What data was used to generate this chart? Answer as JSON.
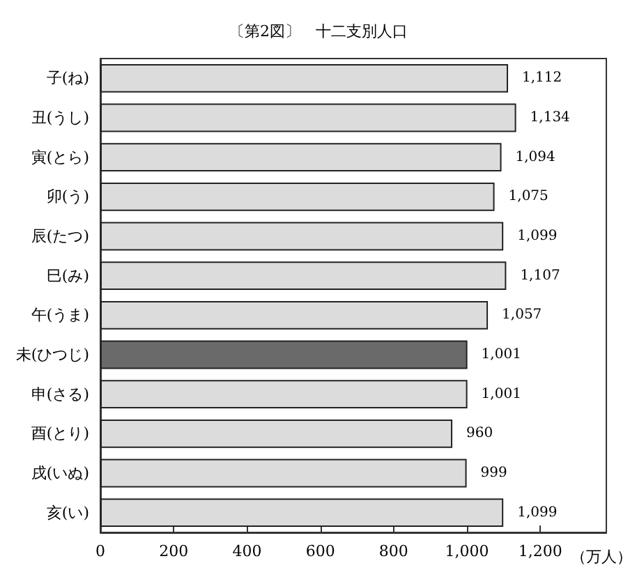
{
  "chart_data": {
    "type": "bar",
    "orientation": "horizontal",
    "title": "〔第2図〕　十二支別人口",
    "xlabel": "（万人）",
    "categories": [
      "子(ね)",
      "丑(うし)",
      "寅(とら)",
      "卯(う)",
      "辰(たつ)",
      "巳(み)",
      "午(うま)",
      "未(ひつじ)",
      "申(さる)",
      "酉(とり)",
      "戌(いぬ)",
      "亥(い)"
    ],
    "values": [
      1112,
      1134,
      1094,
      1075,
      1099,
      1107,
      1057,
      1001,
      1001,
      960,
      999,
      1099
    ],
    "value_labels": [
      "1,112",
      "1,134",
      "1,094",
      "1,075",
      "1,099",
      "1,107",
      "1,057",
      "1,001",
      "1,001",
      "960",
      "999",
      "1,099"
    ],
    "colors": [
      "#dcdcdc",
      "#dcdcdc",
      "#dcdcdc",
      "#dcdcdc",
      "#dcdcdc",
      "#dcdcdc",
      "#dcdcdc",
      "#6a6a6a",
      "#dcdcdc",
      "#dcdcdc",
      "#dcdcdc",
      "#dcdcdc"
    ],
    "xlim": [
      0,
      1380
    ],
    "xticks": [
      0,
      200,
      400,
      600,
      800,
      {
        "value": 1000,
        "label": "1,000"
      },
      {
        "value": 1200,
        "label": "1,200"
      }
    ],
    "grid": false
  }
}
